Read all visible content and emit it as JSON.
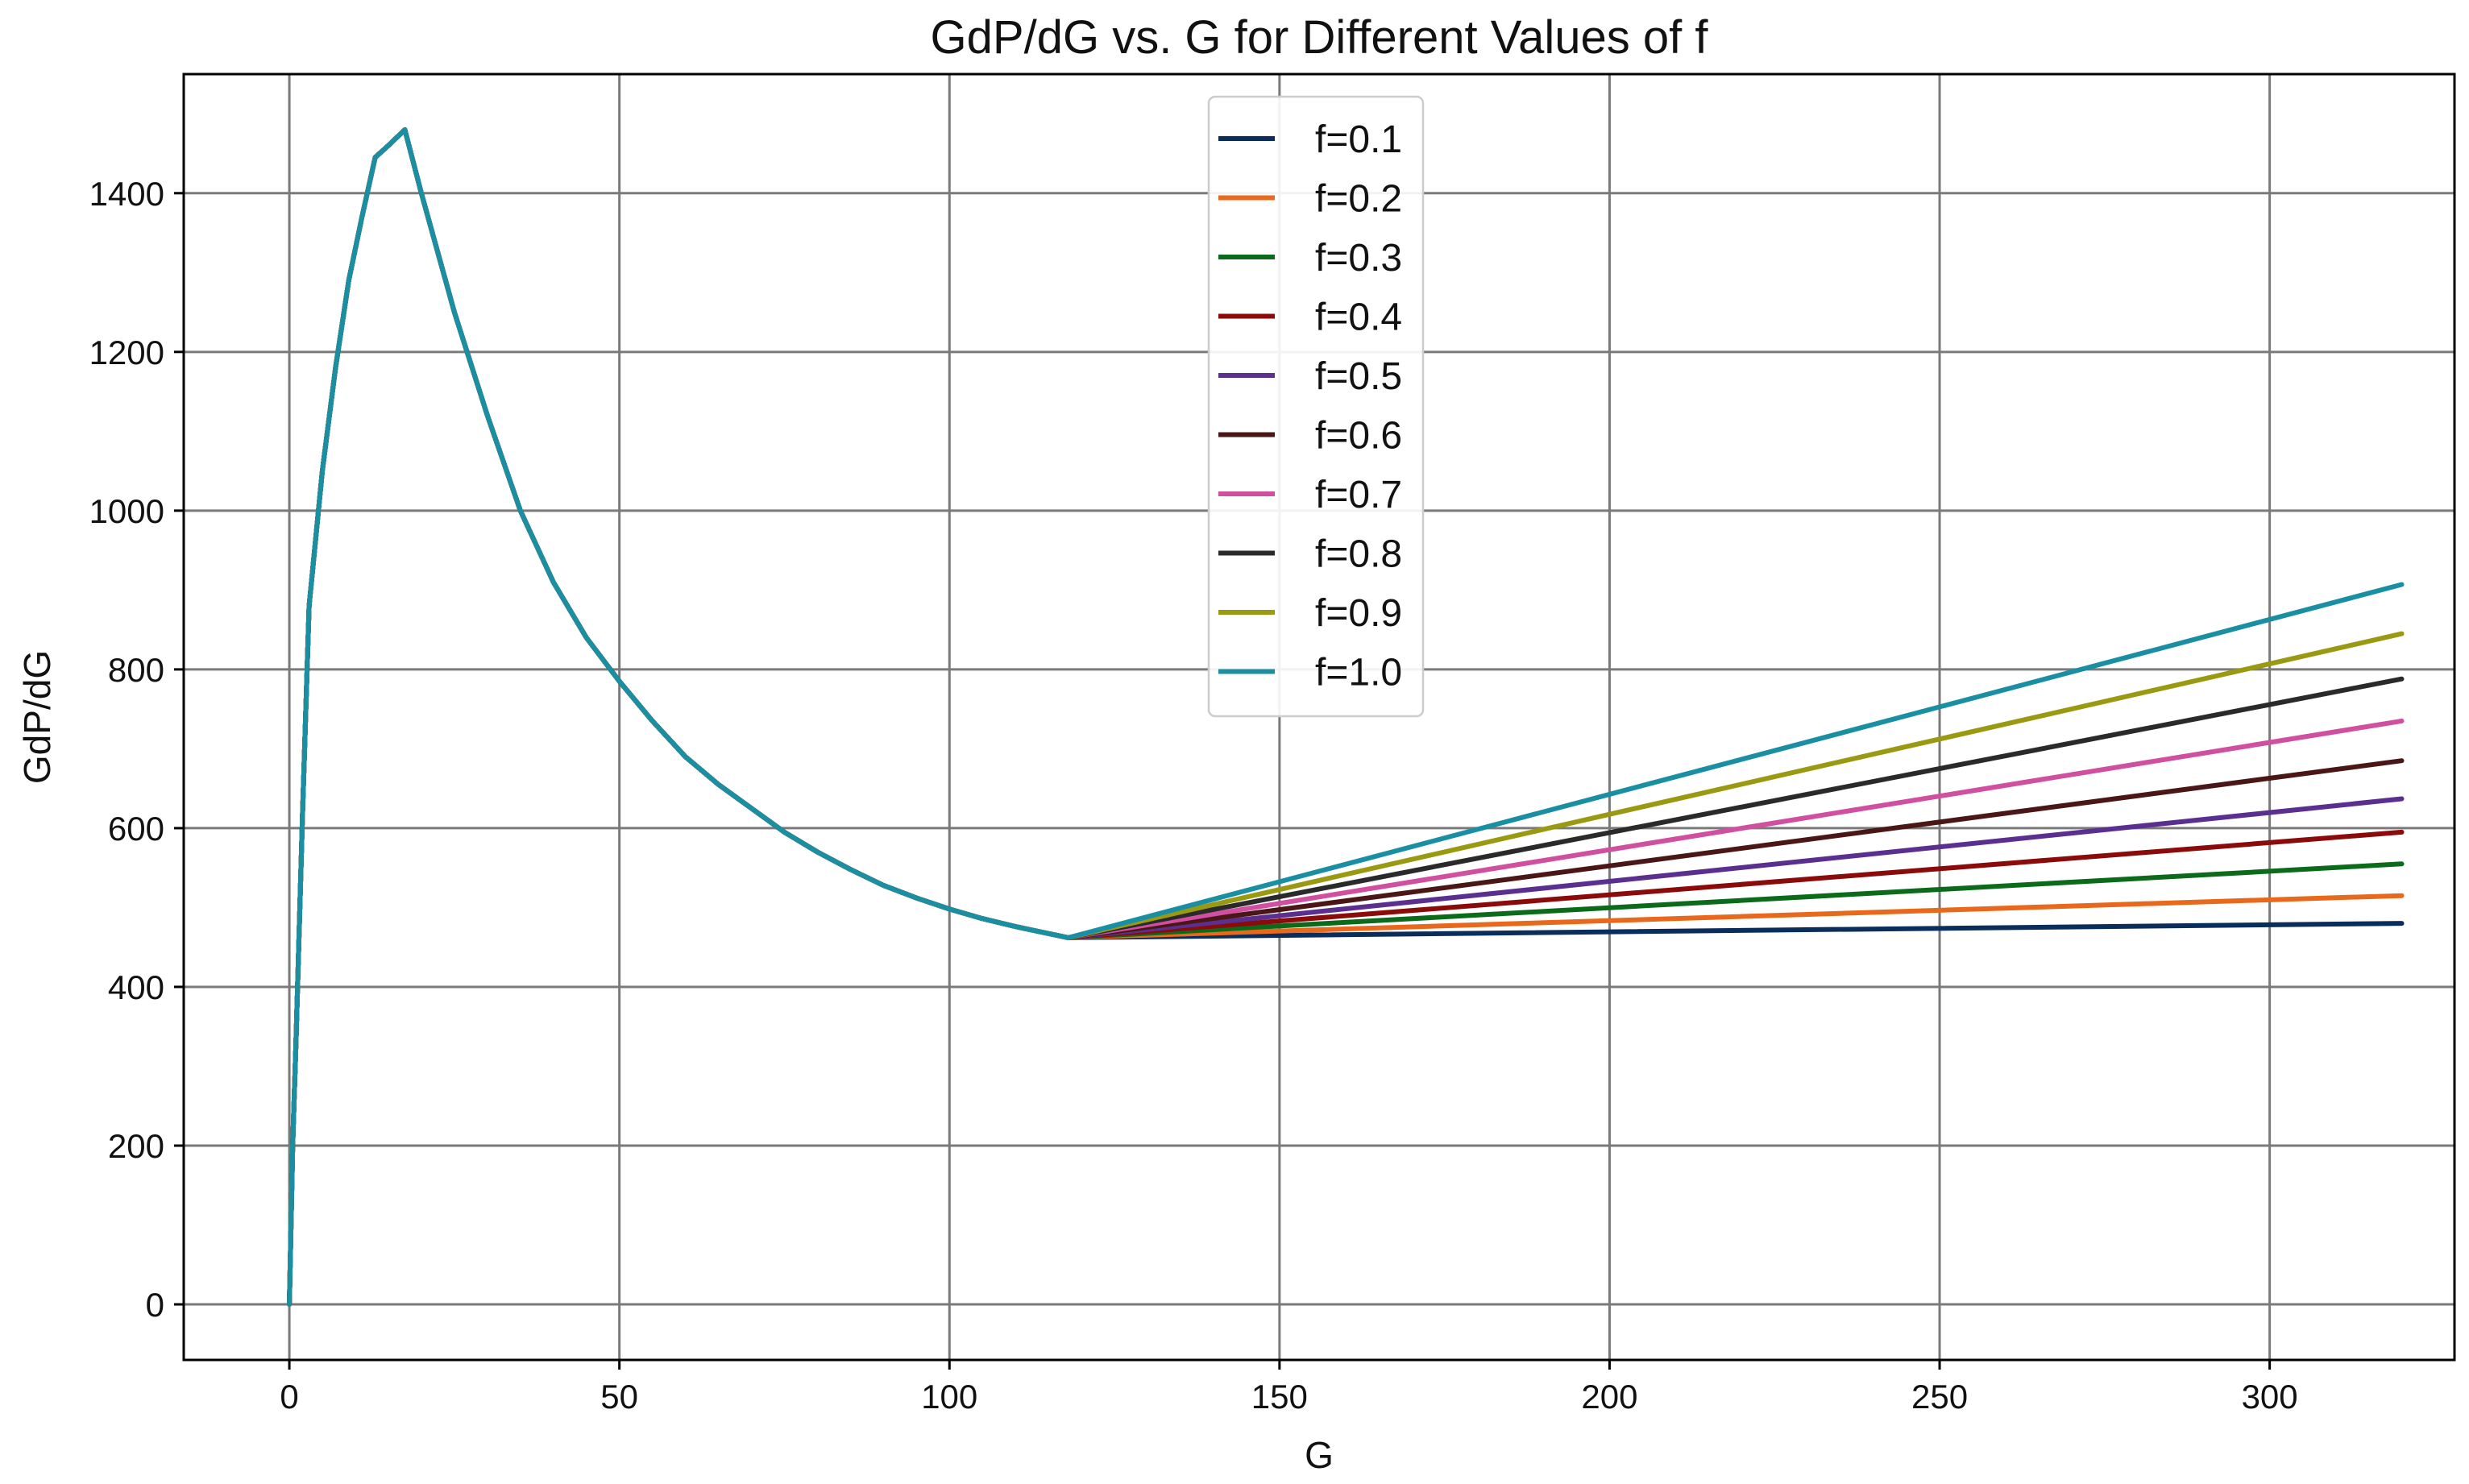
{
  "chart_data": {
    "type": "line",
    "title": "GdP/dG vs. G for Different Values of f",
    "xlabel": "G",
    "ylabel": "GdP/dG",
    "xlim": [
      -16,
      328
    ],
    "ylim": [
      -70,
      1550
    ],
    "x_ticks": [
      0,
      50,
      100,
      150,
      200,
      250,
      300
    ],
    "y_ticks": [
      0,
      200,
      400,
      600,
      800,
      1000,
      1200,
      1400
    ],
    "grid": true,
    "legend_position": "upper-center",
    "shared_curve": {
      "x": [
        0,
        0.5,
        1,
        2,
        3,
        5,
        7,
        9,
        11,
        13,
        15,
        17.5,
        20,
        25,
        30,
        35,
        40,
        45,
        50,
        55,
        60,
        65,
        70,
        75,
        80,
        85,
        90,
        95,
        100,
        105,
        110,
        118
      ],
      "y": [
        0,
        200,
        330,
        620,
        880,
        1050,
        1180,
        1290,
        1370,
        1445,
        1460,
        1480,
        1400,
        1250,
        1120,
        1000,
        910,
        840,
        785,
        735,
        690,
        655,
        625,
        595,
        570,
        548,
        528,
        512,
        498,
        486,
        476,
        462
      ]
    },
    "x_end": 320,
    "series": [
      {
        "name": "f=0.1",
        "color": "#0b2d5b",
        "end_value": 480
      },
      {
        "name": "f=0.2",
        "color": "#e8681c",
        "end_value": 515
      },
      {
        "name": "f=0.3",
        "color": "#0b6b1a",
        "end_value": 555
      },
      {
        "name": "f=0.4",
        "color": "#8b0a0a",
        "end_value": 595
      },
      {
        "name": "f=0.5",
        "color": "#5a2f8f",
        "end_value": 637
      },
      {
        "name": "f=0.6",
        "color": "#4a1616",
        "end_value": 685
      },
      {
        "name": "f=0.7",
        "color": "#d14fa0",
        "end_value": 735
      },
      {
        "name": "f=0.8",
        "color": "#2a2a2a",
        "end_value": 788
      },
      {
        "name": "f=0.9",
        "color": "#9a9a12",
        "end_value": 845
      },
      {
        "name": "f=1.0",
        "color": "#1a8fa3",
        "end_value": 907
      }
    ]
  }
}
